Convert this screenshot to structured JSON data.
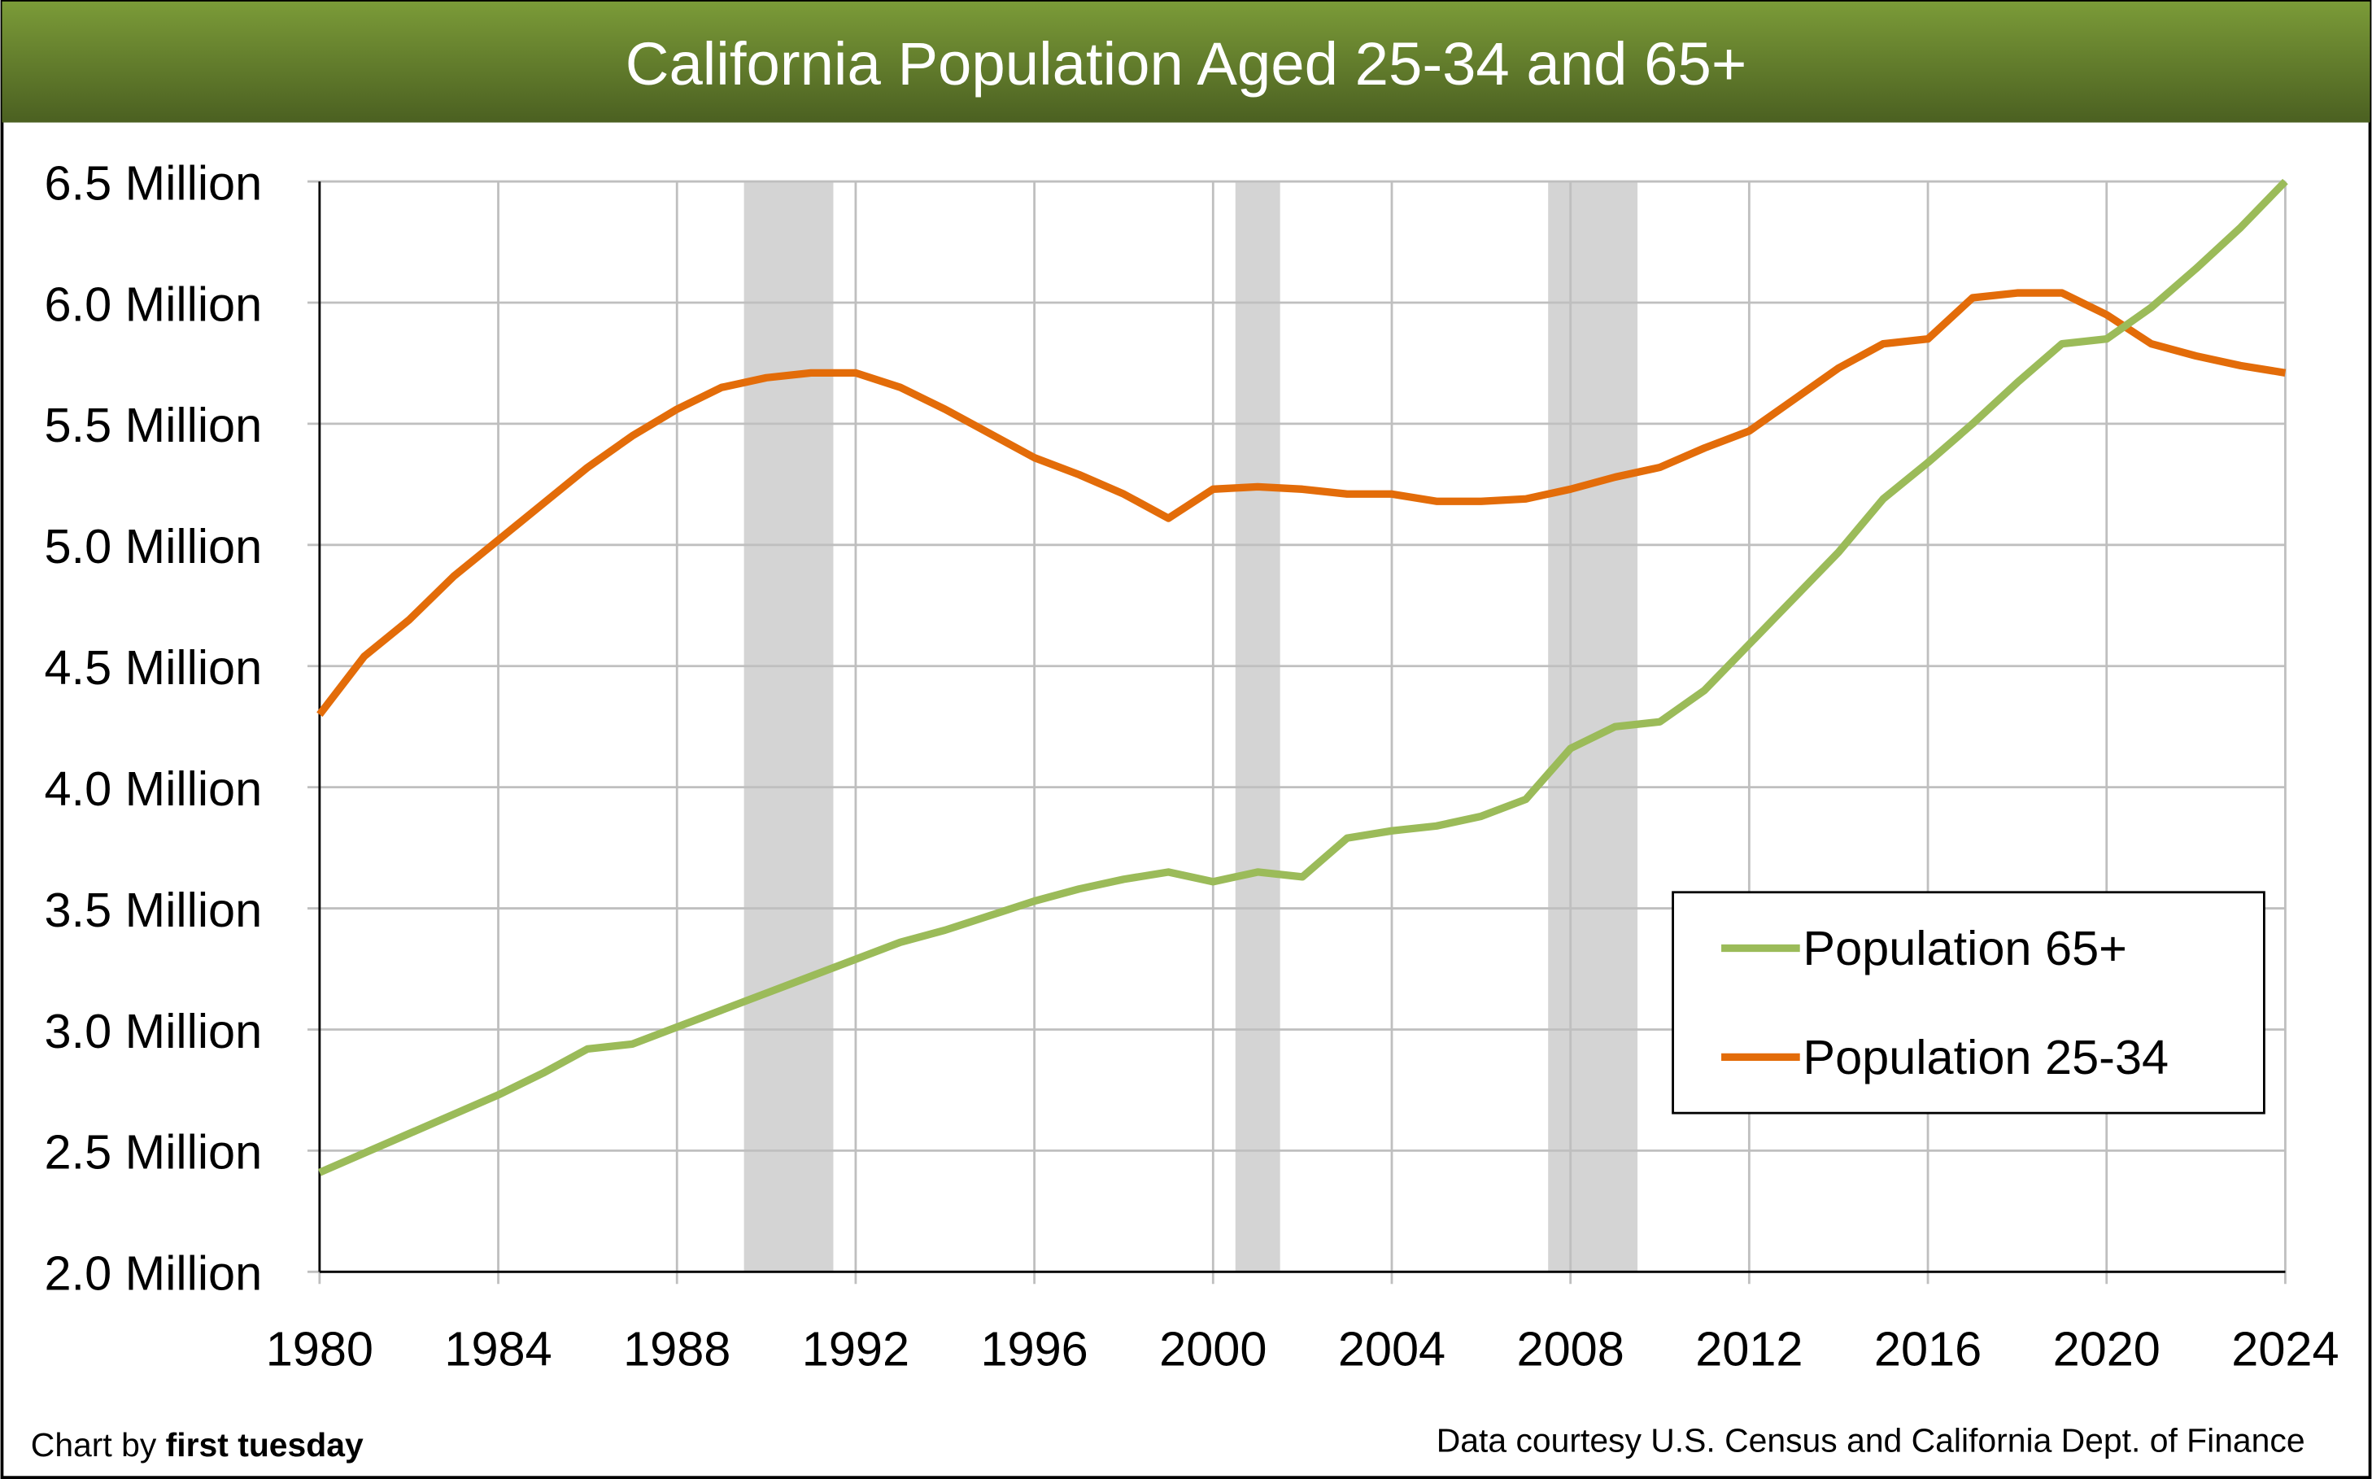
{
  "chart_data": {
    "type": "line",
    "title": "California Population Aged 25-34 and 65+",
    "xlabel": "",
    "ylabel": "",
    "xlim": [
      1980,
      2024
    ],
    "ylim": [
      2.0,
      6.5
    ],
    "grid": true,
    "x_ticks": [
      "1980",
      "1984",
      "1988",
      "1992",
      "1996",
      "2000",
      "2004",
      "2008",
      "2012",
      "2016",
      "2020",
      "2024"
    ],
    "x_tick_values": [
      1980,
      1984,
      1988,
      1992,
      1996,
      2000,
      2004,
      2008,
      2012,
      2016,
      2020,
      2024
    ],
    "y_ticks": [
      "2.0 Million",
      "2.5 Million",
      "3.0 Million",
      "3.5 Million",
      "4.0 Million",
      "4.5 Million",
      "5.0 Million",
      "5.5 Million",
      "6.0 Million",
      "6.5 Million"
    ],
    "y_tick_values": [
      2.0,
      2.5,
      3.0,
      3.5,
      4.0,
      4.5,
      5.0,
      5.5,
      6.0,
      6.5
    ],
    "legend_position": "lower-right",
    "recessions": [
      [
        1989.5,
        1991.5
      ],
      [
        2000.5,
        2001.5
      ],
      [
        2007.5,
        2009.5
      ]
    ],
    "x": [
      1980,
      1981,
      1982,
      1983,
      1984,
      1985,
      1986,
      1987,
      1988,
      1989,
      1990,
      1991,
      1992,
      1993,
      1994,
      1995,
      1996,
      1997,
      1998,
      1999,
      2000,
      2001,
      2002,
      2003,
      2004,
      2005,
      2006,
      2007,
      2008,
      2009,
      2010,
      2011,
      2012,
      2013,
      2014,
      2015,
      2016,
      2017,
      2018,
      2019,
      2020,
      2021,
      2022,
      2023,
      2024
    ],
    "series": [
      {
        "name": "Population 65+",
        "color": "#9bbb59",
        "values": [
          2.41,
          2.49,
          2.57,
          2.65,
          2.73,
          2.82,
          2.92,
          2.94,
          3.01,
          3.08,
          3.15,
          3.22,
          3.29,
          3.36,
          3.41,
          3.47,
          3.53,
          3.58,
          3.62,
          3.65,
          3.61,
          3.65,
          3.63,
          3.79,
          3.82,
          3.84,
          3.88,
          3.95,
          4.16,
          4.25,
          4.27,
          4.4,
          4.59,
          4.78,
          4.97,
          5.19,
          5.34,
          5.5,
          5.67,
          5.83,
          5.85,
          5.98,
          6.14,
          6.31,
          6.5
        ]
      },
      {
        "name": "Population 25-34",
        "color": "#e36c09",
        "values": [
          4.3,
          4.54,
          4.69,
          4.87,
          5.02,
          5.17,
          5.32,
          5.45,
          5.56,
          5.65,
          5.69,
          5.71,
          5.71,
          5.65,
          5.56,
          5.46,
          5.36,
          5.29,
          5.21,
          5.11,
          5.23,
          5.24,
          5.23,
          5.21,
          5.21,
          5.18,
          5.18,
          5.19,
          5.23,
          5.28,
          5.32,
          5.4,
          5.47,
          5.6,
          5.73,
          5.83,
          5.85,
          6.02,
          6.04,
          6.04,
          5.95,
          5.83,
          5.78,
          5.74,
          5.71
        ]
      }
    ]
  },
  "footer": {
    "credit_prefix": "Chart by ",
    "credit_brand": "first tuesday",
    "source": "Data courtesy U.S. Census and California Dept. of Finance"
  }
}
